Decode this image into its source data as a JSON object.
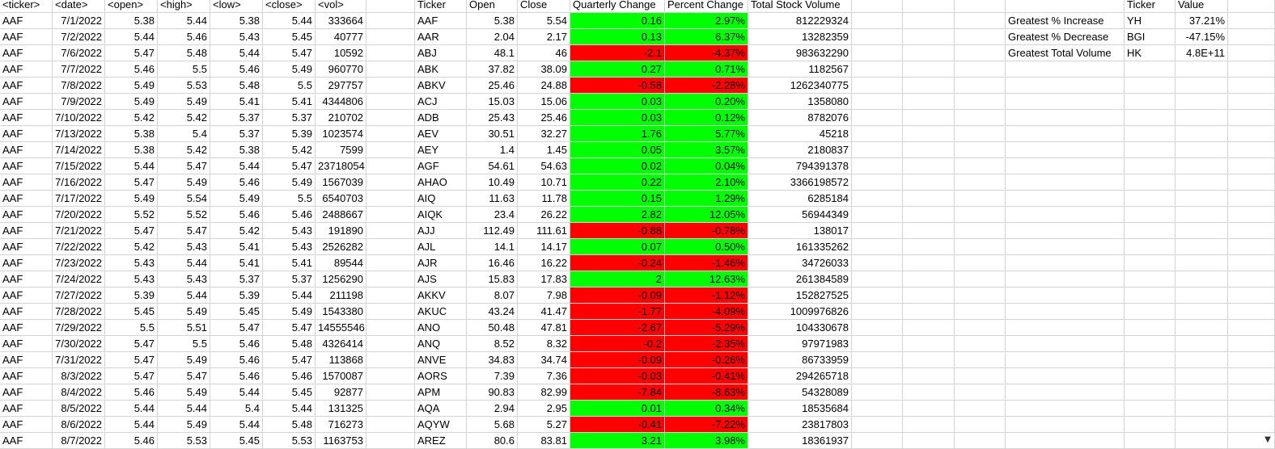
{
  "raw_headers": [
    "<ticker>",
    "<date>",
    "<open>",
    "<high>",
    "<low>",
    "<close>",
    "<vol>"
  ],
  "raw_rows": [
    [
      "AAF",
      "7/1/2022",
      "5.38",
      "5.44",
      "5.38",
      "5.44",
      "333664"
    ],
    [
      "AAF",
      "7/2/2022",
      "5.44",
      "5.46",
      "5.43",
      "5.45",
      "40777"
    ],
    [
      "AAF",
      "7/6/2022",
      "5.47",
      "5.48",
      "5.44",
      "5.47",
      "10592"
    ],
    [
      "AAF",
      "7/7/2022",
      "5.46",
      "5.5",
      "5.46",
      "5.49",
      "960770"
    ],
    [
      "AAF",
      "7/8/2022",
      "5.49",
      "5.53",
      "5.48",
      "5.5",
      "297757"
    ],
    [
      "AAF",
      "7/9/2022",
      "5.49",
      "5.49",
      "5.41",
      "5.41",
      "4344806"
    ],
    [
      "AAF",
      "7/10/2022",
      "5.42",
      "5.42",
      "5.37",
      "5.37",
      "210702"
    ],
    [
      "AAF",
      "7/13/2022",
      "5.38",
      "5.4",
      "5.37",
      "5.39",
      "1023574"
    ],
    [
      "AAF",
      "7/14/2022",
      "5.38",
      "5.42",
      "5.38",
      "5.42",
      "7599"
    ],
    [
      "AAF",
      "7/15/2022",
      "5.44",
      "5.47",
      "5.44",
      "5.47",
      "23718054"
    ],
    [
      "AAF",
      "7/16/2022",
      "5.47",
      "5.49",
      "5.46",
      "5.49",
      "1567039"
    ],
    [
      "AAF",
      "7/17/2022",
      "5.49",
      "5.54",
      "5.49",
      "5.5",
      "6540703"
    ],
    [
      "AAF",
      "7/20/2022",
      "5.52",
      "5.52",
      "5.46",
      "5.46",
      "2488667"
    ],
    [
      "AAF",
      "7/21/2022",
      "5.47",
      "5.47",
      "5.42",
      "5.43",
      "191890"
    ],
    [
      "AAF",
      "7/22/2022",
      "5.42",
      "5.43",
      "5.41",
      "5.43",
      "2526282"
    ],
    [
      "AAF",
      "7/23/2022",
      "5.43",
      "5.44",
      "5.41",
      "5.41",
      "89544"
    ],
    [
      "AAF",
      "7/24/2022",
      "5.43",
      "5.43",
      "5.37",
      "5.37",
      "1256290"
    ],
    [
      "AAF",
      "7/27/2022",
      "5.39",
      "5.44",
      "5.39",
      "5.44",
      "211198"
    ],
    [
      "AAF",
      "7/28/2022",
      "5.45",
      "5.49",
      "5.45",
      "5.49",
      "1543380"
    ],
    [
      "AAF",
      "7/29/2022",
      "5.5",
      "5.51",
      "5.47",
      "5.47",
      "14555546"
    ],
    [
      "AAF",
      "7/30/2022",
      "5.47",
      "5.5",
      "5.46",
      "5.48",
      "4326414"
    ],
    [
      "AAF",
      "7/31/2022",
      "5.47",
      "5.49",
      "5.46",
      "5.47",
      "113868"
    ],
    [
      "AAF",
      "8/3/2022",
      "5.47",
      "5.47",
      "5.46",
      "5.46",
      "1570087"
    ],
    [
      "AAF",
      "8/4/2022",
      "5.46",
      "5.49",
      "5.44",
      "5.45",
      "92877"
    ],
    [
      "AAF",
      "8/5/2022",
      "5.44",
      "5.44",
      "5.4",
      "5.44",
      "131325"
    ],
    [
      "AAF",
      "8/6/2022",
      "5.44",
      "5.49",
      "5.44",
      "5.48",
      "716273"
    ],
    [
      "AAF",
      "8/7/2022",
      "5.46",
      "5.53",
      "5.45",
      "5.53",
      "1163753"
    ]
  ],
  "summary_headers": [
    "Ticker",
    "Open",
    "Close",
    "Quarterly Change",
    "Percent Change",
    "Total Stock Volume"
  ],
  "summary_rows": [
    [
      "AAF",
      "5.38",
      "5.54",
      "0.16",
      "2.97%",
      "812229324"
    ],
    [
      "AAR",
      "2.04",
      "2.17",
      "0.13",
      "6.37%",
      "13282359"
    ],
    [
      "ABJ",
      "48.1",
      "46",
      "-2.1",
      "-4.37%",
      "983632290"
    ],
    [
      "ABK",
      "37.82",
      "38.09",
      "0.27",
      "0.71%",
      "1182567"
    ],
    [
      "ABKV",
      "25.46",
      "24.88",
      "-0.58",
      "-2.28%",
      "1262340775"
    ],
    [
      "ACJ",
      "15.03",
      "15.06",
      "0.03",
      "0.20%",
      "1358080"
    ],
    [
      "ADB",
      "25.43",
      "25.46",
      "0.03",
      "0.12%",
      "8782076"
    ],
    [
      "AEV",
      "30.51",
      "32.27",
      "1.76",
      "5.77%",
      "45218"
    ],
    [
      "AEY",
      "1.4",
      "1.45",
      "0.05",
      "3.57%",
      "2180837"
    ],
    [
      "AGF",
      "54.61",
      "54.63",
      "0.02",
      "0.04%",
      "794391378"
    ],
    [
      "AHAO",
      "10.49",
      "10.71",
      "0.22",
      "2.10%",
      "3366198572"
    ],
    [
      "AIQ",
      "11.63",
      "11.78",
      "0.15",
      "1.29%",
      "6285184"
    ],
    [
      "AIQK",
      "23.4",
      "26.22",
      "2.82",
      "12.05%",
      "56944349"
    ],
    [
      "AJJ",
      "112.49",
      "111.61",
      "-0.88",
      "-0.78%",
      "138017"
    ],
    [
      "AJL",
      "14.1",
      "14.17",
      "0.07",
      "0.50%",
      "161335262"
    ],
    [
      "AJR",
      "16.46",
      "16.22",
      "-0.24",
      "-1.46%",
      "34726033"
    ],
    [
      "AJS",
      "15.83",
      "17.83",
      "2",
      "12.63%",
      "261384589"
    ],
    [
      "AKKV",
      "8.07",
      "7.98",
      "-0.09",
      "-1.12%",
      "152827525"
    ],
    [
      "AKUC",
      "43.24",
      "41.47",
      "-1.77",
      "-4.09%",
      "1009976826"
    ],
    [
      "ANO",
      "50.48",
      "47.81",
      "-2.67",
      "-5.29%",
      "104330678"
    ],
    [
      "ANQ",
      "8.52",
      "8.32",
      "-0.2",
      "-2.35%",
      "97971983"
    ],
    [
      "ANVE",
      "34.83",
      "34.74",
      "-0.09",
      "-0.26%",
      "86733959"
    ],
    [
      "AORS",
      "7.39",
      "7.36",
      "-0.03",
      "-0.41%",
      "294265718"
    ],
    [
      "APM",
      "90.83",
      "82.99",
      "-7.84",
      "-8.63%",
      "54328089"
    ],
    [
      "AQA",
      "2.94",
      "2.95",
      "0.01",
      "0.34%",
      "18535684"
    ],
    [
      "AQYW",
      "5.68",
      "5.27",
      "-0.41",
      "-7.22%",
      "23817803"
    ],
    [
      "AREZ",
      "80.6",
      "83.81",
      "3.21",
      "3.98%",
      "18361937"
    ]
  ],
  "greatest_headers": [
    "",
    "Ticker",
    "Value"
  ],
  "greatest_rows": [
    [
      "Greatest % Increase",
      "YH",
      "37.21%"
    ],
    [
      "Greatest % Decrease",
      "BGI",
      "-47.15%"
    ],
    [
      "Greatest Total Volume",
      "HK",
      "4.8E+11"
    ]
  ],
  "colors": {
    "positive": "#00ff00",
    "negative": "#ff0000",
    "gridline": "#d4d4d4"
  },
  "icons": {
    "scroll_down": "triangle-down-icon"
  }
}
